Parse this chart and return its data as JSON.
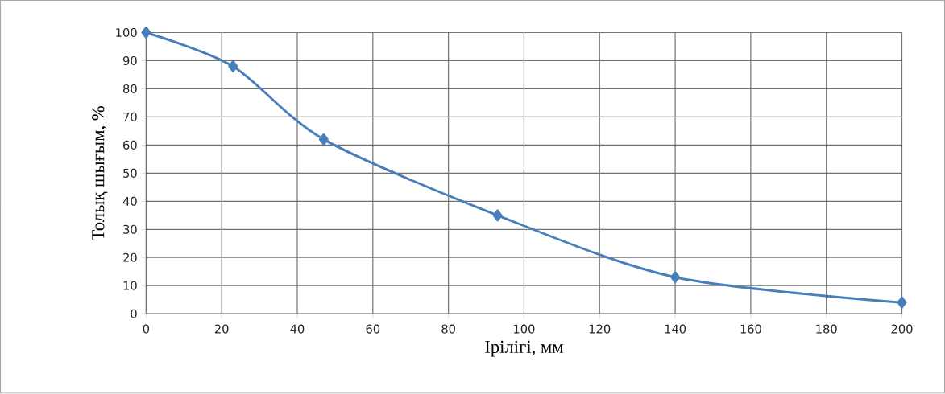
{
  "chart_data": {
    "type": "line",
    "xlabel": "Ірілігі, мм",
    "ylabel": "Толық шығым, %",
    "x": [
      0,
      23,
      47,
      93,
      140,
      200
    ],
    "series": [
      {
        "color": "#4a7ebb",
        "values": [
          100,
          88,
          62,
          35,
          13,
          4
        ]
      }
    ],
    "xlim": [
      0,
      200
    ],
    "ylim": [
      0,
      100
    ],
    "xticks": [
      0,
      20,
      40,
      60,
      80,
      100,
      120,
      140,
      160,
      180,
      200
    ],
    "yticks": [
      0,
      10,
      20,
      30,
      40,
      50,
      60,
      70,
      80,
      90,
      100
    ],
    "grid": true,
    "marker": "diamond",
    "line_style": "solid"
  }
}
